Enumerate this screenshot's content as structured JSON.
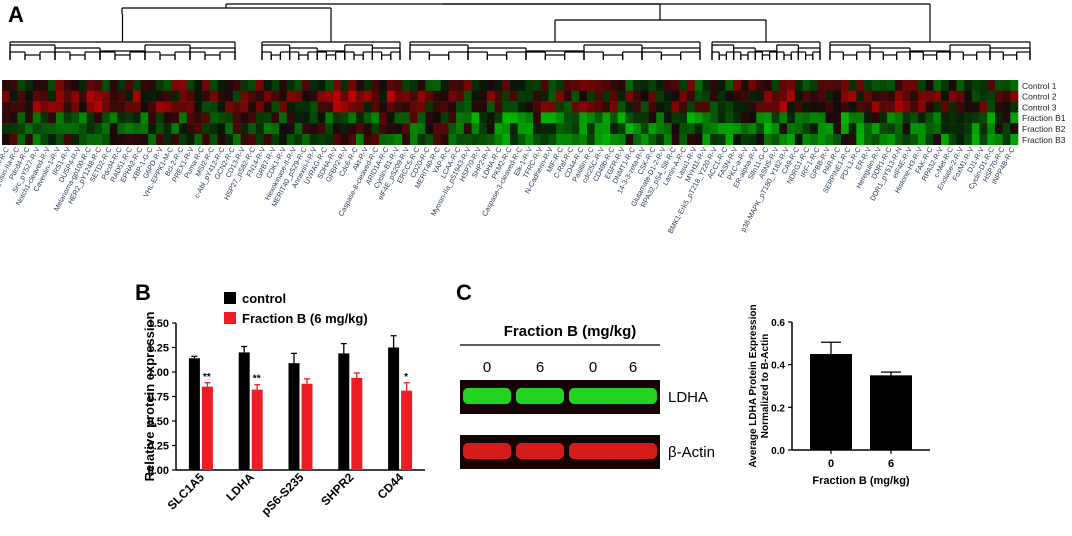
{
  "panels": {
    "a": "A",
    "b": "B",
    "c": "C"
  },
  "heatmap": {
    "type": "heatmap",
    "rows": [
      "Control 1",
      "Control 2",
      "Control 3",
      "Fraction B1",
      "Fraction B2",
      "Fraction B3"
    ],
    "colors": {
      "high": "#e0161c",
      "mid": "#000000",
      "low": "#1fcf1f"
    },
    "columns": [
      "P-Cadherin-R-C",
      "Myosin-IIa-R-C",
      "Pdcd4-R-C",
      "Src_pY527-R-V",
      "Notch1-cleaved-R-V",
      "Caveolin-1-R-V",
      "IRS1-R-V",
      "DUSP4-R-V",
      "Melanoma-gp100-R-C",
      "HER2_pY1248-R-C",
      "SETD2-R-C",
      "Pdcd4-R-C",
      "RAD51-R-C",
      "EPHA2-R-C",
      "XBP-1-G-C",
      "G6PD-R-V",
      "VHL-EPPK1-M-C",
      "Bcl-2-R-C",
      "PREX1-R-V",
      "Puma-R-C",
      "MSI2-R-C",
      "c-Abl_pY412-R-C",
      "GCN2-R-C",
      "CD13-R-V",
      "HSP27_pS82-R-C",
      "FN14-R-V",
      "GRB7-R-V",
      "CDK1-R-V",
      "Hexokinase-II-R-V",
      "MERIT40_pS29-R-C",
      "Annexin-I-R-V",
      "UVRAG-R-C",
      "SDHA-R-V",
      "GFBP2-R-V",
      "Cdc6-R-C",
      "Akt-R-V",
      "Caspase-8-cleaved-R-C",
      "ARID1A-R-C",
      "Cyclin-B1-R-V",
      "elF4E_pS209-R-V",
      "ERCC5-R-C",
      "CD20-R-C",
      "MERIT40-R-C",
      "YAP-R-C",
      "LCAA-R-C",
      "Myosin-IIa_pS1943-R-V",
      "HSP70-R-V",
      "SHP2-R-V",
      "LDHA-R-C",
      "PKM2-R-C",
      "Caspase-3-cleaved-R-C",
      "Elk-1-R-V",
      "TFRC-R-V",
      "N-Cadherin-R-V",
      "MIF-R-C",
      "C-Raf-R-C",
      "CD44-R-C",
      "Paxillin-R-C",
      "cdc25C-R-V",
      "CD49b-R-C",
      "EGFR-R-V",
      "DNMT1-R-C",
      "14-3-3-zeta-R-V",
      "CSK-R-C",
      "Glutamate-D1-2-R-V",
      "RPA32_pS4_S8-R-C",
      "Lamin-A-R-C",
      "Lasu1-R-V",
      "MYH11-R-V",
      "BMK1-Erk5_pT218_Y220-R-V",
      "ACC1-R-C",
      "FASN-R-V",
      "PKC-a-R-V",
      "ER-alpha-R-V",
      "Slfn11-G-C",
      "ASNS-R-V",
      "p38-MAPK_pT180_Y182-R-V",
      "CA9-R-C",
      "NDRG1-R-C",
      "IRF-1-R-C",
      "GPBB-R-V",
      "PAR-R-C",
      "SERPINE1-R-C",
      "PD-L1-R-C",
      "ER-R-V",
      "Heregulin-R-V",
      "DDR1-R-C",
      "DDR1_pY513-R-N",
      "eIF4E-R-V",
      "Histone-H3-R-V",
      "FAK-R-C",
      "RPA32-R-V",
      "c-Met-R-C",
      "Enolase-2-R-V",
      "FoxM1-R-V",
      "DJ1-R-V",
      "Cyclin-D1-R-C",
      "HSP70-R-C",
      "INPP4B-R-C"
    ]
  },
  "bar_chart": {
    "type": "bar",
    "ylabel": "Relative protein expression",
    "ylim": [
      0.0,
      1.5
    ],
    "yticks": [
      "0.00",
      "0.25",
      "0.50",
      "0.75",
      "1.00",
      "1.25",
      "1.50"
    ],
    "categories": [
      "SLC1A5",
      "LDHA",
      "pS6-S235",
      "SHPR2",
      "CD44"
    ],
    "series": [
      {
        "name": "control",
        "color": "#000000",
        "values": [
          1.14,
          1.2,
          1.09,
          1.19,
          1.25
        ],
        "errors": [
          0.02,
          0.06,
          0.1,
          0.1,
          0.12
        ]
      },
      {
        "name": "Fraction B (6 mg/kg)",
        "color": "#ee1c24",
        "values": [
          0.85,
          0.82,
          0.88,
          0.94,
          0.81
        ],
        "errors": [
          0.04,
          0.05,
          0.05,
          0.05,
          0.08
        ]
      }
    ],
    "significance": [
      "**",
      "**",
      "",
      "",
      "*"
    ]
  },
  "blot": {
    "title": "Fraction B (mg/kg)",
    "lanes": [
      "0",
      "6",
      "0",
      "6"
    ],
    "bands": [
      {
        "label": "LDHA",
        "color": "#22d322"
      },
      {
        "label": "β-Actin",
        "color": "#d61b1b"
      }
    ]
  },
  "quant_chart": {
    "type": "bar",
    "ylabel_line1": "Average LDHA Protein Expression",
    "ylabel_line2": "Normalized to B-Actin",
    "xlabel": "Fraction B (mg/kg)",
    "ylim": [
      0.0,
      0.6
    ],
    "yticks": [
      "0.0",
      "0.2",
      "0.4",
      "0.6"
    ],
    "categories": [
      "0",
      "6"
    ],
    "values": [
      0.45,
      0.35
    ],
    "errors": [
      0.055,
      0.015
    ]
  }
}
